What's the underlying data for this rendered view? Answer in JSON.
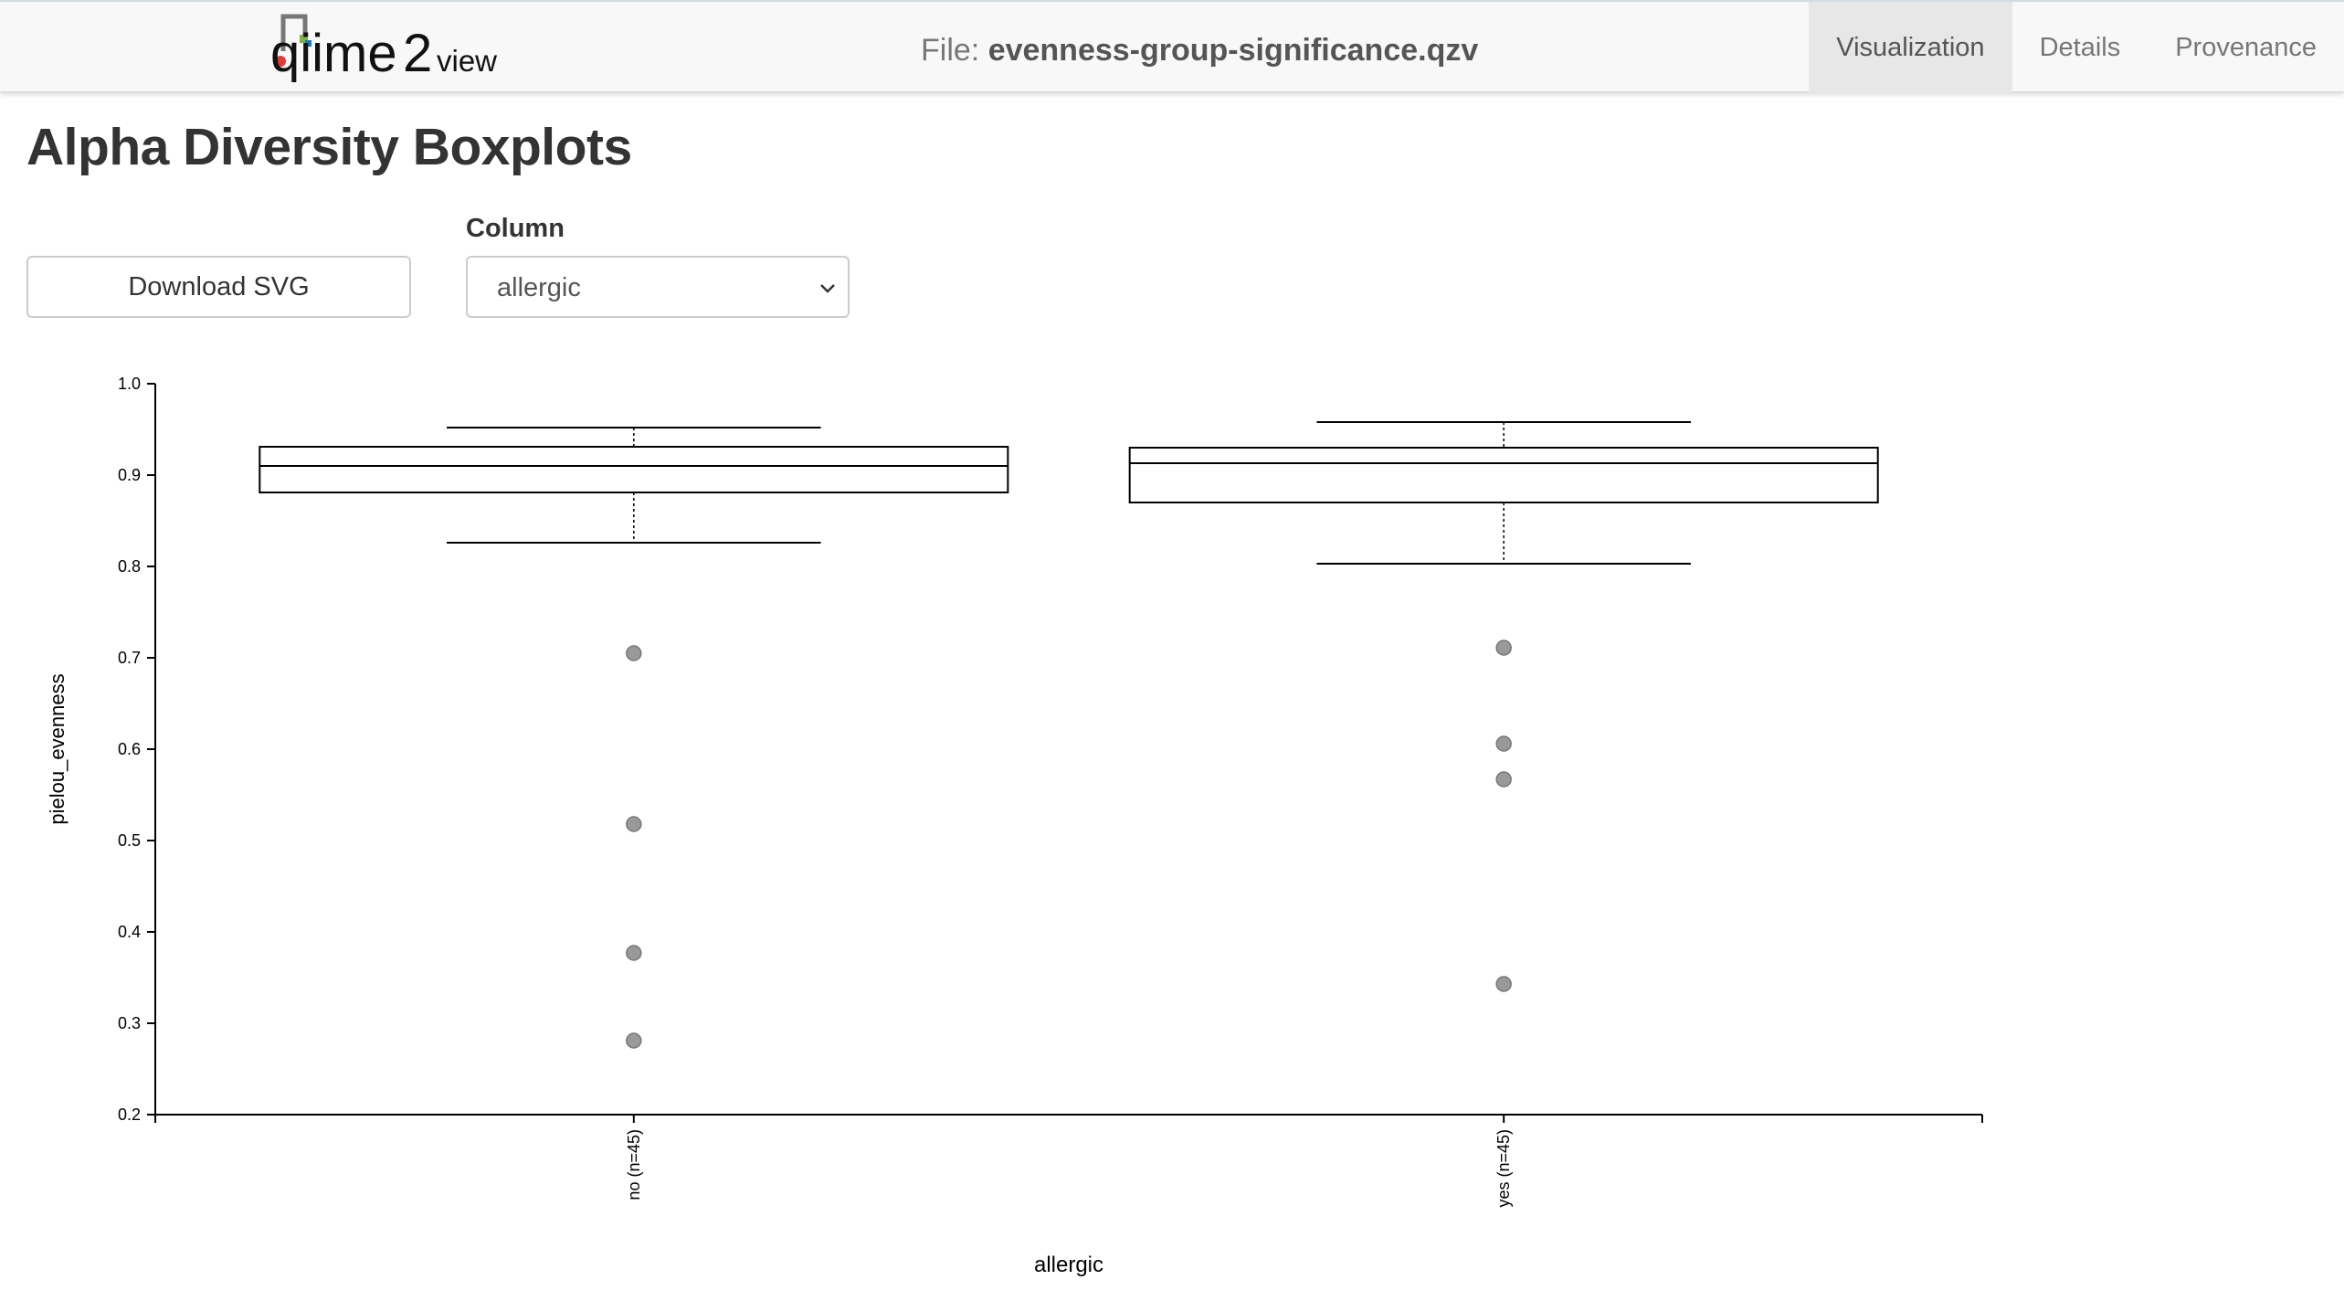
{
  "header": {
    "logo_text": "qiime2view",
    "file_prefix": "File:",
    "file_name": "evenness-group-significance.qzv",
    "tabs": [
      {
        "label": "Visualization",
        "active": true
      },
      {
        "label": "Details",
        "active": false
      },
      {
        "label": "Provenance",
        "active": false
      }
    ]
  },
  "page": {
    "title": "Alpha Diversity Boxplots",
    "download_label": "Download SVG",
    "column_label": "Column",
    "column_value": "allergic"
  },
  "chart_data": {
    "type": "boxplot",
    "ylabel": "pielou_evenness",
    "xlabel": "allergic",
    "ylim": [
      0.2,
      1.0
    ],
    "yticks": [
      "0.2",
      "0.3",
      "0.4",
      "0.5",
      "0.6",
      "0.7",
      "0.8",
      "0.9",
      "1.0"
    ],
    "groups": [
      {
        "label": "no (n=45)",
        "whisker_low": 0.826,
        "q1": 0.881,
        "median": 0.91,
        "q3": 0.931,
        "whisker_high": 0.952,
        "outliers": [
          0.705,
          0.518,
          0.377,
          0.281
        ]
      },
      {
        "label": "yes (n=45)",
        "whisker_low": 0.803,
        "q1": 0.87,
        "median": 0.913,
        "q3": 0.93,
        "whisker_high": 0.958,
        "outliers": [
          0.711,
          0.606,
          0.567,
          0.343
        ]
      }
    ],
    "colors": {
      "outlier_fill": "#999999",
      "outlier_stroke": "#777777",
      "box_stroke": "#000000"
    }
  }
}
